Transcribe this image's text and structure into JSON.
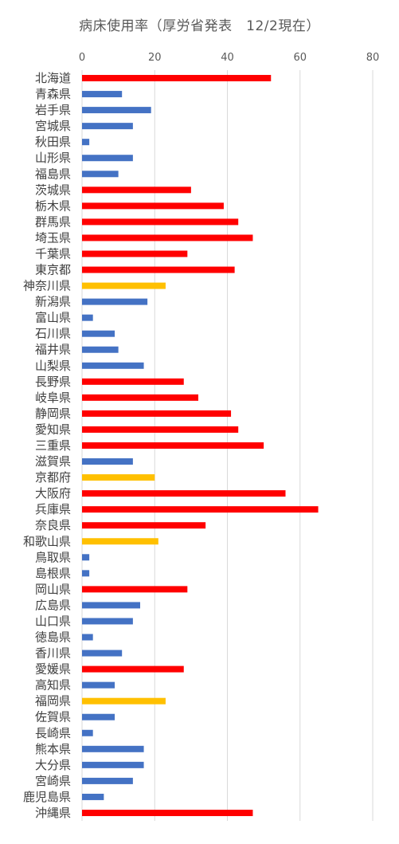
{
  "chart_data": {
    "type": "bar",
    "orientation": "horizontal",
    "title": "病床使用率（厚労省発表　12/2現在）",
    "xlim": [
      0,
      80
    ],
    "xticks": [
      0,
      20,
      40,
      60,
      80
    ],
    "grid": "vertical",
    "categories": [
      "北海道",
      "青森県",
      "岩手県",
      "宮城県",
      "秋田県",
      "山形県",
      "福島県",
      "茨城県",
      "栃木県",
      "群馬県",
      "埼玉県",
      "千葉県",
      "東京都",
      "神奈川県",
      "新潟県",
      "富山県",
      "石川県",
      "福井県",
      "山梨県",
      "長野県",
      "岐阜県",
      "静岡県",
      "愛知県",
      "三重県",
      "滋賀県",
      "京都府",
      "大阪府",
      "兵庫県",
      "奈良県",
      "和歌山県",
      "鳥取県",
      "島根県",
      "岡山県",
      "広島県",
      "山口県",
      "徳島県",
      "香川県",
      "愛媛県",
      "高知県",
      "福岡県",
      "佐賀県",
      "長崎県",
      "熊本県",
      "大分県",
      "宮崎県",
      "鹿児島県",
      "沖縄県"
    ],
    "values": [
      52,
      11,
      19,
      14,
      2,
      14,
      10,
      30,
      39,
      43,
      47,
      29,
      42,
      23,
      18,
      3,
      9,
      10,
      17,
      28,
      32,
      41,
      43,
      50,
      14,
      20,
      56,
      65,
      34,
      21,
      2,
      2,
      29,
      16,
      14,
      3,
      11,
      28,
      9,
      23,
      9,
      3,
      17,
      17,
      14,
      6,
      47
    ],
    "bar_colors": [
      "#FF0000",
      "#4472C4",
      "#4472C4",
      "#4472C4",
      "#4472C4",
      "#4472C4",
      "#4472C4",
      "#FF0000",
      "#FF0000",
      "#FF0000",
      "#FF0000",
      "#FF0000",
      "#FF0000",
      "#FFC000",
      "#4472C4",
      "#4472C4",
      "#4472C4",
      "#4472C4",
      "#4472C4",
      "#FF0000",
      "#FF0000",
      "#FF0000",
      "#FF0000",
      "#FF0000",
      "#4472C4",
      "#FFC000",
      "#FF0000",
      "#FF0000",
      "#FF0000",
      "#FFC000",
      "#4472C4",
      "#4472C4",
      "#FF0000",
      "#4472C4",
      "#4472C4",
      "#4472C4",
      "#4472C4",
      "#FF0000",
      "#4472C4",
      "#FFC000",
      "#4472C4",
      "#4472C4",
      "#4472C4",
      "#4472C4",
      "#4472C4",
      "#4472C4",
      "#FF0000"
    ]
  },
  "colors": {
    "red": "#FF0000",
    "blue": "#4472C4",
    "yellow": "#FFC000",
    "grid": "#D9D9D9"
  }
}
